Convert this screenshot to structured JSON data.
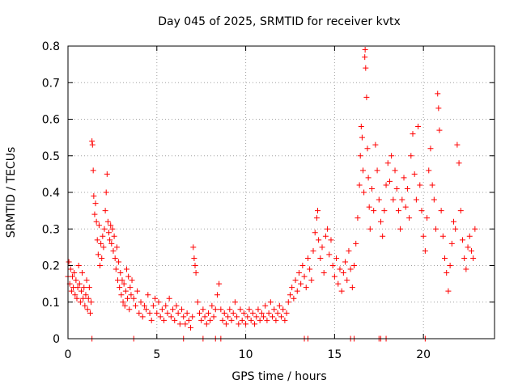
{
  "chart_data": {
    "type": "scatter",
    "title": "Day 045 of 2025, SRMTID for receiver kvtx",
    "xlabel": "GPS time / hours",
    "ylabel": "SRMTID / TECUs",
    "xlim": [
      0,
      24
    ],
    "ylim": [
      0,
      0.8
    ],
    "xticks": [
      0,
      5,
      10,
      15,
      20
    ],
    "yticks": [
      0,
      0.1,
      0.2,
      0.3,
      0.4,
      0.5,
      0.6,
      0.7,
      0.8
    ],
    "xtick_labels": [
      "0",
      "5",
      "10",
      "15",
      "20"
    ],
    "ytick_labels": [
      "0",
      "0.1",
      "0.2",
      "0.3",
      "0.4",
      "0.5",
      "0.6",
      "0.7",
      "0.8"
    ],
    "grid": true,
    "marker": "+",
    "color": "#ff0000",
    "series": [
      {
        "name": "SRMTID",
        "points": [
          [
            0.0,
            0.17
          ],
          [
            0.05,
            0.21
          ],
          [
            0.1,
            0.15
          ],
          [
            0.15,
            0.19
          ],
          [
            0.2,
            0.13
          ],
          [
            0.25,
            0.17
          ],
          [
            0.3,
            0.14
          ],
          [
            0.35,
            0.18
          ],
          [
            0.4,
            0.12
          ],
          [
            0.45,
            0.16
          ],
          [
            0.5,
            0.11
          ],
          [
            0.55,
            0.14
          ],
          [
            0.6,
            0.2
          ],
          [
            0.65,
            0.15
          ],
          [
            0.7,
            0.1
          ],
          [
            0.75,
            0.13
          ],
          [
            0.8,
            0.18
          ],
          [
            0.85,
            0.11
          ],
          [
            0.9,
            0.14
          ],
          [
            0.95,
            0.09
          ],
          [
            1.0,
            0.12
          ],
          [
            1.05,
            0.16
          ],
          [
            1.1,
            0.08
          ],
          [
            1.15,
            0.11
          ],
          [
            1.2,
            0.14
          ],
          [
            1.25,
            0.07
          ],
          [
            1.3,
            0.1
          ],
          [
            1.35,
            0.54
          ],
          [
            1.38,
            0.53
          ],
          [
            1.42,
            0.46
          ],
          [
            1.45,
            0.39
          ],
          [
            1.5,
            0.34
          ],
          [
            1.55,
            0.37
          ],
          [
            1.6,
            0.32
          ],
          [
            1.65,
            0.27
          ],
          [
            1.7,
            0.23
          ],
          [
            1.75,
            0.31
          ],
          [
            1.8,
            0.2
          ],
          [
            1.85,
            0.26
          ],
          [
            1.9,
            0.22
          ],
          [
            1.95,
            0.28
          ],
          [
            2.0,
            0.25
          ],
          [
            2.05,
            0.3
          ],
          [
            2.1,
            0.35
          ],
          [
            2.15,
            0.4
          ],
          [
            2.2,
            0.45
          ],
          [
            2.25,
            0.32
          ],
          [
            2.3,
            0.29
          ],
          [
            2.35,
            0.27
          ],
          [
            2.4,
            0.31
          ],
          [
            2.45,
            0.26
          ],
          [
            2.5,
            0.3
          ],
          [
            2.55,
            0.24
          ],
          [
            2.6,
            0.28
          ],
          [
            2.65,
            0.22
          ],
          [
            2.7,
            0.19
          ],
          [
            2.75,
            0.25
          ],
          [
            2.8,
            0.16
          ],
          [
            2.85,
            0.21
          ],
          [
            2.9,
            0.14
          ],
          [
            2.95,
            0.18
          ],
          [
            3.0,
            0.12
          ],
          [
            3.05,
            0.16
          ],
          [
            3.1,
            0.1
          ],
          [
            3.15,
            0.15
          ],
          [
            3.2,
            0.09
          ],
          [
            3.25,
            0.13
          ],
          [
            3.3,
            0.19
          ],
          [
            3.35,
            0.11
          ],
          [
            3.4,
            0.17
          ],
          [
            3.45,
            0.08
          ],
          [
            3.5,
            0.14
          ],
          [
            3.55,
            0.12
          ],
          [
            3.6,
            0.16
          ],
          [
            3.7,
            0.11
          ],
          [
            3.8,
            0.09
          ],
          [
            3.9,
            0.13
          ],
          [
            4.0,
            0.07
          ],
          [
            4.1,
            0.1
          ],
          [
            4.2,
            0.06
          ],
          [
            4.3,
            0.09
          ],
          [
            4.4,
            0.08
          ],
          [
            4.5,
            0.12
          ],
          [
            4.6,
            0.07
          ],
          [
            4.7,
            0.05
          ],
          [
            4.8,
            0.09
          ],
          [
            4.9,
            0.11
          ],
          [
            5.0,
            0.07
          ],
          [
            5.1,
            0.1
          ],
          [
            5.2,
            0.06
          ],
          [
            5.3,
            0.08
          ],
          [
            5.4,
            0.05
          ],
          [
            5.5,
            0.09
          ],
          [
            5.6,
            0.07
          ],
          [
            5.7,
            0.11
          ],
          [
            5.8,
            0.06
          ],
          [
            5.9,
            0.08
          ],
          [
            6.0,
            0.05
          ],
          [
            6.1,
            0.09
          ],
          [
            6.2,
            0.07
          ],
          [
            6.3,
            0.04
          ],
          [
            6.4,
            0.08
          ],
          [
            6.5,
            0.06
          ],
          [
            6.6,
            0.04
          ],
          [
            6.7,
            0.07
          ],
          [
            6.8,
            0.05
          ],
          [
            6.9,
            0.03
          ],
          [
            7.0,
            0.06
          ],
          [
            7.05,
            0.25
          ],
          [
            7.1,
            0.22
          ],
          [
            7.15,
            0.2
          ],
          [
            7.2,
            0.18
          ],
          [
            7.3,
            0.1
          ],
          [
            7.4,
            0.07
          ],
          [
            7.5,
            0.05
          ],
          [
            7.6,
            0.08
          ],
          [
            7.7,
            0.06
          ],
          [
            7.8,
            0.04
          ],
          [
            7.9,
            0.07
          ],
          [
            8.0,
            0.05
          ],
          [
            8.1,
            0.09
          ],
          [
            8.2,
            0.06
          ],
          [
            8.3,
            0.08
          ],
          [
            8.4,
            0.12
          ],
          [
            8.5,
            0.15
          ],
          [
            8.6,
            0.08
          ],
          [
            8.7,
            0.05
          ],
          [
            8.8,
            0.07
          ],
          [
            8.9,
            0.04
          ],
          [
            9.0,
            0.06
          ],
          [
            9.1,
            0.08
          ],
          [
            9.2,
            0.05
          ],
          [
            9.3,
            0.07
          ],
          [
            9.4,
            0.1
          ],
          [
            9.5,
            0.06
          ],
          [
            9.6,
            0.04
          ],
          [
            9.7,
            0.08
          ],
          [
            9.8,
            0.05
          ],
          [
            9.9,
            0.07
          ],
          [
            10.0,
            0.04
          ],
          [
            10.1,
            0.06
          ],
          [
            10.2,
            0.08
          ],
          [
            10.3,
            0.05
          ],
          [
            10.4,
            0.07
          ],
          [
            10.5,
            0.04
          ],
          [
            10.6,
            0.06
          ],
          [
            10.7,
            0.08
          ],
          [
            10.8,
            0.05
          ],
          [
            10.9,
            0.07
          ],
          [
            11.0,
            0.06
          ],
          [
            11.1,
            0.09
          ],
          [
            11.2,
            0.05
          ],
          [
            11.3,
            0.07
          ],
          [
            11.4,
            0.1
          ],
          [
            11.5,
            0.06
          ],
          [
            11.6,
            0.08
          ],
          [
            11.7,
            0.05
          ],
          [
            11.8,
            0.07
          ],
          [
            11.9,
            0.09
          ],
          [
            12.0,
            0.06
          ],
          [
            12.1,
            0.08
          ],
          [
            12.2,
            0.05
          ],
          [
            12.3,
            0.07
          ],
          [
            12.4,
            0.1
          ],
          [
            12.5,
            0.12
          ],
          [
            12.6,
            0.14
          ],
          [
            12.7,
            0.11
          ],
          [
            12.8,
            0.16
          ],
          [
            12.9,
            0.13
          ],
          [
            13.0,
            0.18
          ],
          [
            13.1,
            0.15
          ],
          [
            13.2,
            0.2
          ],
          [
            13.3,
            0.17
          ],
          [
            13.4,
            0.14
          ],
          [
            13.5,
            0.22
          ],
          [
            13.6,
            0.19
          ],
          [
            13.7,
            0.16
          ],
          [
            13.8,
            0.24
          ],
          [
            13.9,
            0.29
          ],
          [
            14.0,
            0.33
          ],
          [
            14.05,
            0.35
          ],
          [
            14.1,
            0.27
          ],
          [
            14.2,
            0.22
          ],
          [
            14.3,
            0.25
          ],
          [
            14.4,
            0.18
          ],
          [
            14.5,
            0.28
          ],
          [
            14.6,
            0.3
          ],
          [
            14.7,
            0.23
          ],
          [
            14.8,
            0.27
          ],
          [
            14.9,
            0.2
          ],
          [
            15.0,
            0.17
          ],
          [
            15.1,
            0.22
          ],
          [
            15.2,
            0.15
          ],
          [
            15.3,
            0.19
          ],
          [
            15.4,
            0.13
          ],
          [
            15.5,
            0.18
          ],
          [
            15.6,
            0.21
          ],
          [
            15.7,
            0.16
          ],
          [
            15.8,
            0.24
          ],
          [
            15.9,
            0.19
          ],
          [
            16.0,
            0.14
          ],
          [
            16.1,
            0.2
          ],
          [
            16.2,
            0.26
          ],
          [
            16.3,
            0.33
          ],
          [
            16.4,
            0.42
          ],
          [
            16.45,
            0.5
          ],
          [
            16.5,
            0.58
          ],
          [
            16.55,
            0.55
          ],
          [
            16.6,
            0.46
          ],
          [
            16.65,
            0.4
          ],
          [
            16.7,
            0.77
          ],
          [
            16.72,
            0.79
          ],
          [
            16.75,
            0.74
          ],
          [
            16.8,
            0.66
          ],
          [
            16.85,
            0.52
          ],
          [
            16.9,
            0.44
          ],
          [
            16.95,
            0.36
          ],
          [
            17.0,
            0.3
          ],
          [
            17.1,
            0.41
          ],
          [
            17.2,
            0.35
          ],
          [
            17.3,
            0.53
          ],
          [
            17.4,
            0.46
          ],
          [
            17.5,
            0.38
          ],
          [
            17.6,
            0.32
          ],
          [
            17.7,
            0.28
          ],
          [
            17.8,
            0.35
          ],
          [
            17.9,
            0.42
          ],
          [
            18.0,
            0.48
          ],
          [
            18.1,
            0.43
          ],
          [
            18.2,
            0.5
          ],
          [
            18.3,
            0.38
          ],
          [
            18.4,
            0.46
          ],
          [
            18.5,
            0.41
          ],
          [
            18.6,
            0.35
          ],
          [
            18.7,
            0.3
          ],
          [
            18.8,
            0.38
          ],
          [
            18.9,
            0.44
          ],
          [
            19.0,
            0.36
          ],
          [
            19.1,
            0.41
          ],
          [
            19.2,
            0.33
          ],
          [
            19.3,
            0.5
          ],
          [
            19.4,
            0.56
          ],
          [
            19.5,
            0.45
          ],
          [
            19.6,
            0.38
          ],
          [
            19.7,
            0.58
          ],
          [
            19.8,
            0.42
          ],
          [
            19.9,
            0.35
          ],
          [
            20.0,
            0.28
          ],
          [
            20.1,
            0.24
          ],
          [
            20.2,
            0.33
          ],
          [
            20.3,
            0.46
          ],
          [
            20.4,
            0.52
          ],
          [
            20.5,
            0.42
          ],
          [
            20.6,
            0.38
          ],
          [
            20.7,
            0.3
          ],
          [
            20.8,
            0.67
          ],
          [
            20.85,
            0.63
          ],
          [
            20.9,
            0.57
          ],
          [
            21.0,
            0.35
          ],
          [
            21.1,
            0.28
          ],
          [
            21.2,
            0.22
          ],
          [
            21.3,
            0.18
          ],
          [
            21.4,
            0.13
          ],
          [
            21.5,
            0.2
          ],
          [
            21.6,
            0.26
          ],
          [
            21.7,
            0.32
          ],
          [
            21.8,
            0.3
          ],
          [
            21.9,
            0.53
          ],
          [
            22.0,
            0.48
          ],
          [
            22.1,
            0.35
          ],
          [
            22.2,
            0.27
          ],
          [
            22.3,
            0.22
          ],
          [
            22.4,
            0.19
          ],
          [
            22.5,
            0.25
          ],
          [
            22.6,
            0.28
          ],
          [
            22.7,
            0.24
          ],
          [
            22.8,
            0.22
          ],
          [
            22.9,
            0.3
          ]
        ]
      }
    ],
    "zero_points_x": [
      1.35,
      3.7,
      6.5,
      7.6,
      8.3,
      8.6,
      13.3,
      13.5,
      15.9,
      16.1,
      17.5,
      17.6,
      17.9,
      20.1
    ]
  }
}
